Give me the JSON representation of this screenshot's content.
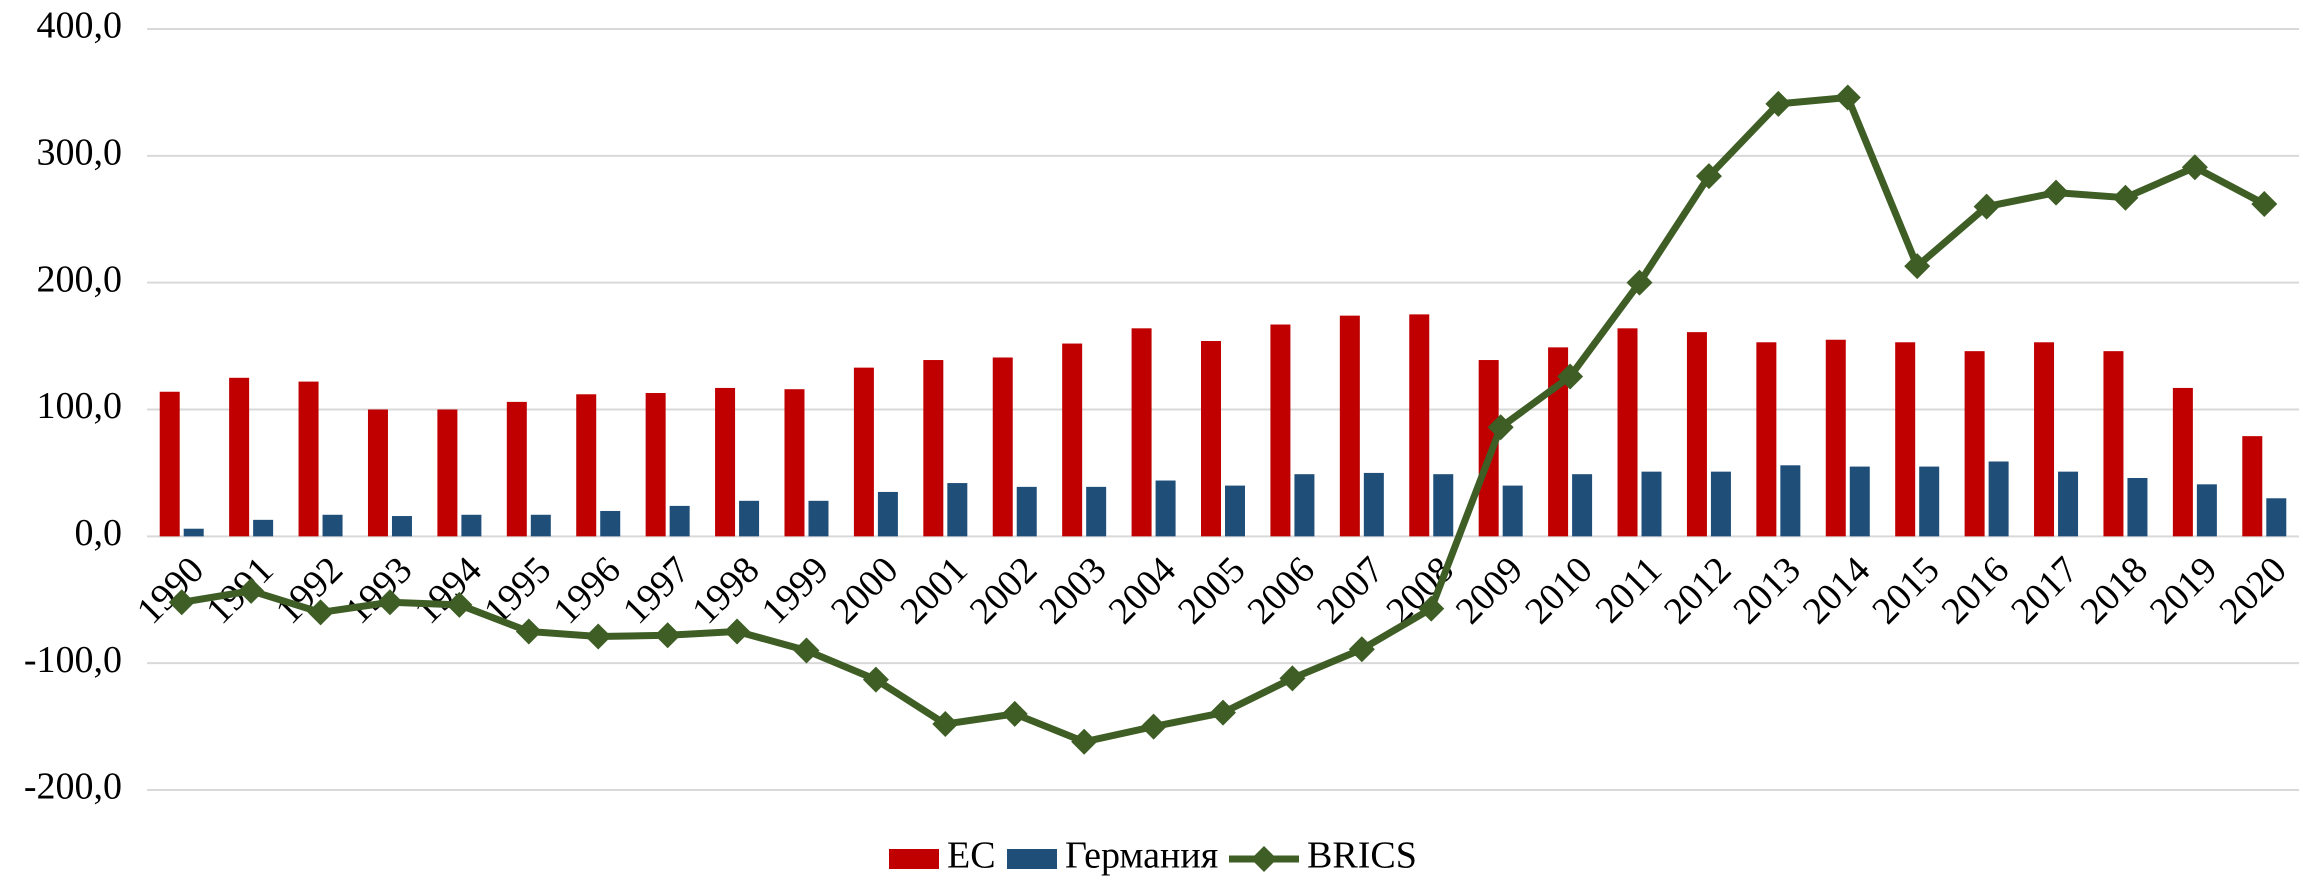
{
  "chart_data": {
    "type": "bar_line",
    "categories": [
      "1990",
      "1991",
      "1992",
      "1993",
      "1994",
      "1995",
      "1996",
      "1997",
      "1998",
      "1999",
      "2000",
      "2001",
      "2002",
      "2003",
      "2004",
      "2005",
      "2006",
      "2007",
      "2008",
      "2009",
      "2010",
      "2011",
      "2012",
      "2013",
      "2014",
      "2015",
      "2016",
      "2017",
      "2018",
      "2019",
      "2020"
    ],
    "series": [
      {
        "name": "ЕС",
        "type": "bar",
        "color": "#c00000",
        "values": [
          114,
          125,
          122,
          100,
          100,
          106,
          112,
          113,
          117,
          116,
          133,
          139,
          141,
          152,
          164,
          154,
          167,
          174,
          175,
          139,
          149,
          164,
          161,
          153,
          155,
          153,
          146,
          153,
          146,
          117,
          79
        ]
      },
      {
        "name": "Германия",
        "type": "bar",
        "color": "#1f4e79",
        "values": [
          6,
          13,
          17,
          16,
          17,
          17,
          20,
          24,
          28,
          28,
          35,
          42,
          39,
          39,
          44,
          40,
          49,
          50,
          49,
          40,
          49,
          51,
          51,
          56,
          55,
          55,
          59,
          51,
          46,
          41,
          30
        ]
      },
      {
        "name": "BRICS",
        "type": "line",
        "color": "#3e5e25",
        "values": [
          -52,
          -43,
          -60,
          -52,
          -54,
          -75,
          -79,
          -78,
          -75,
          -90,
          -113,
          -148,
          -140,
          -162,
          -150,
          -139,
          -112,
          -89,
          -57,
          86,
          126,
          200,
          284,
          341,
          346,
          213,
          260,
          271,
          267,
          291,
          262
        ]
      }
    ],
    "ylim": [
      -200,
      400
    ],
    "yticks": [
      {
        "value": -200,
        "label": "-200,0"
      },
      {
        "value": -100,
        "label": "-100,0"
      },
      {
        "value": 0,
        "label": "0,0"
      },
      {
        "value": 100,
        "label": "100,0"
      },
      {
        "value": 200,
        "label": "200,0"
      },
      {
        "value": 300,
        "label": "300,0"
      },
      {
        "value": 400,
        "label": "400,0"
      }
    ],
    "grid": true,
    "legend": "bottom"
  }
}
